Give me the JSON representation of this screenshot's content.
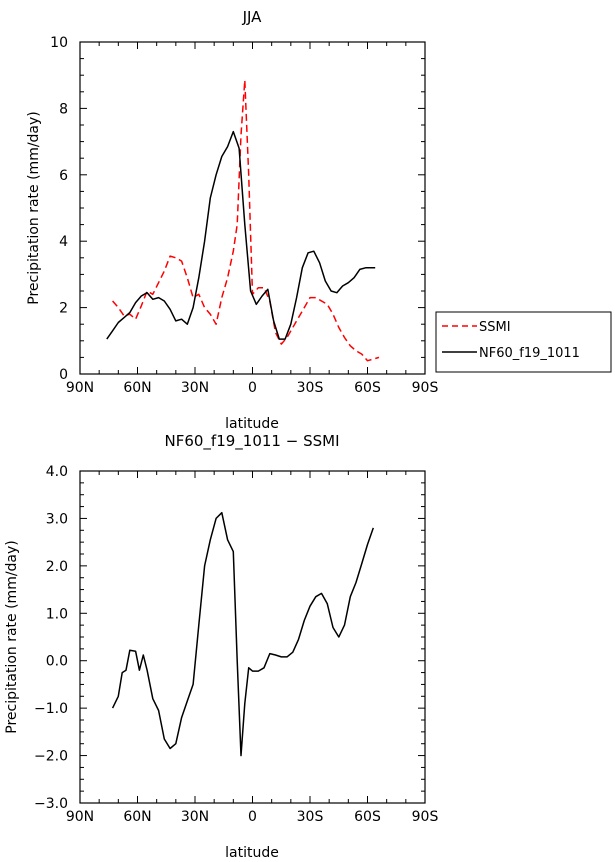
{
  "chart_data": [
    {
      "type": "line",
      "title": "JJA",
      "xlabel": "latitude",
      "ylabel": "Precipitation rate (mm/day)",
      "xlim": [
        90,
        -90
      ],
      "ylim": [
        0,
        10
      ],
      "x_ticks": [
        90,
        60,
        30,
        0,
        -30,
        -60,
        -90
      ],
      "x_tick_labels": [
        "90N",
        "60N",
        "30N",
        "0",
        "30S",
        "60S",
        "90S"
      ],
      "y_ticks": [
        0,
        2,
        4,
        6,
        8,
        10
      ],
      "y_tick_labels": [
        "0",
        "2",
        "4",
        "6",
        "8",
        "10"
      ],
      "grid": false,
      "legend_position": "right",
      "series": [
        {
          "name": "SSMI",
          "color": "#ff0000",
          "dash": "dashed",
          "x": [
            73,
            70,
            67,
            64,
            61,
            58,
            55,
            52,
            46,
            43,
            40,
            37,
            34,
            31,
            28,
            25,
            22,
            19,
            16,
            13,
            10,
            8,
            6,
            4,
            2,
            0,
            -3,
            -6,
            -9,
            -12,
            -15,
            -18,
            -21,
            -24,
            -27,
            -30,
            -33,
            -36,
            -39,
            -42,
            -45,
            -48,
            -51,
            -54,
            -57,
            -60,
            -63,
            -66
          ],
          "y": [
            2.2,
            2.0,
            1.75,
            1.8,
            1.65,
            2.05,
            2.5,
            2.4,
            3.1,
            3.55,
            3.5,
            3.4,
            2.9,
            2.3,
            2.4,
            2.0,
            1.8,
            1.5,
            2.3,
            2.9,
            3.7,
            4.5,
            7.2,
            8.85,
            6.0,
            2.4,
            2.6,
            2.6,
            2.2,
            1.25,
            0.9,
            1.1,
            1.4,
            1.7,
            2.0,
            2.3,
            2.3,
            2.2,
            2.1,
            1.8,
            1.4,
            1.1,
            0.85,
            0.7,
            0.6,
            0.4,
            0.45,
            0.5
          ]
        },
        {
          "name": "NF60_f19_1011",
          "color": "#000000",
          "dash": "solid",
          "x": [
            76,
            73,
            70,
            67,
            64,
            61,
            58,
            55,
            52,
            49,
            46,
            43,
            40,
            37,
            34,
            31,
            28,
            25,
            22,
            19,
            16,
            13,
            10,
            7,
            4,
            1,
            -2,
            -5,
            -8,
            -11,
            -14,
            -17,
            -20,
            -23,
            -26,
            -29,
            -32,
            -35,
            -38,
            -41,
            -44,
            -47,
            -50,
            -53,
            -56,
            -59,
            -64
          ],
          "y": [
            1.05,
            1.3,
            1.55,
            1.7,
            1.85,
            2.15,
            2.35,
            2.45,
            2.25,
            2.3,
            2.2,
            1.95,
            1.6,
            1.65,
            1.5,
            2.0,
            2.9,
            4.0,
            5.3,
            6.0,
            6.55,
            6.85,
            7.3,
            6.8,
            4.5,
            2.5,
            2.1,
            2.35,
            2.55,
            1.6,
            1.05,
            1.05,
            1.5,
            2.3,
            3.2,
            3.65,
            3.7,
            3.35,
            2.8,
            2.5,
            2.45,
            2.65,
            2.75,
            2.9,
            3.15,
            3.2,
            3.2
          ]
        }
      ]
    },
    {
      "type": "line",
      "title": "NF60_f19_1011 − SSMI",
      "xlabel": "latitude",
      "ylabel": "Precipitation rate (mm/day)",
      "xlim": [
        90,
        -90
      ],
      "ylim": [
        -3,
        4
      ],
      "x_ticks": [
        90,
        60,
        30,
        0,
        -30,
        -60,
        -90
      ],
      "x_tick_labels": [
        "90N",
        "60N",
        "30N",
        "0",
        "30S",
        "60S",
        "90S"
      ],
      "y_ticks": [
        -3,
        -2,
        -1,
        0,
        1,
        2,
        3,
        4
      ],
      "y_tick_labels": [
        "−3.0",
        "−2.0",
        "−1.0",
        "0.0",
        "1.0",
        "2.0",
        "3.0",
        "4.0"
      ],
      "grid": false,
      "series": [
        {
          "color": "#000000",
          "dash": "solid",
          "x": [
            73,
            70,
            68,
            66,
            64,
            61,
            59,
            57,
            55,
            52,
            49,
            46,
            43,
            40,
            37,
            34,
            31,
            28,
            25,
            22,
            19,
            16,
            13,
            10,
            8,
            6,
            4,
            2,
            0,
            -3,
            -6,
            -9,
            -12,
            -15,
            -18,
            -21,
            -24,
            -27,
            -30,
            -33,
            -36,
            -39,
            -42,
            -45,
            -48,
            -51,
            -54,
            -57,
            -60,
            -63
          ],
          "y": [
            -1.0,
            -0.75,
            -0.25,
            -0.2,
            0.22,
            0.2,
            -0.2,
            0.12,
            -0.2,
            -0.8,
            -1.05,
            -1.65,
            -1.85,
            -1.75,
            -1.2,
            -0.85,
            -0.5,
            0.75,
            2.0,
            2.55,
            3.0,
            3.12,
            2.55,
            2.3,
            0.0,
            -2.0,
            -0.9,
            -0.15,
            -0.22,
            -0.22,
            -0.15,
            0.15,
            0.12,
            0.08,
            0.08,
            0.18,
            0.45,
            0.85,
            1.15,
            1.35,
            1.42,
            1.2,
            0.7,
            0.5,
            0.75,
            1.35,
            1.65,
            2.05,
            2.45,
            2.8
          ]
        }
      ]
    }
  ]
}
